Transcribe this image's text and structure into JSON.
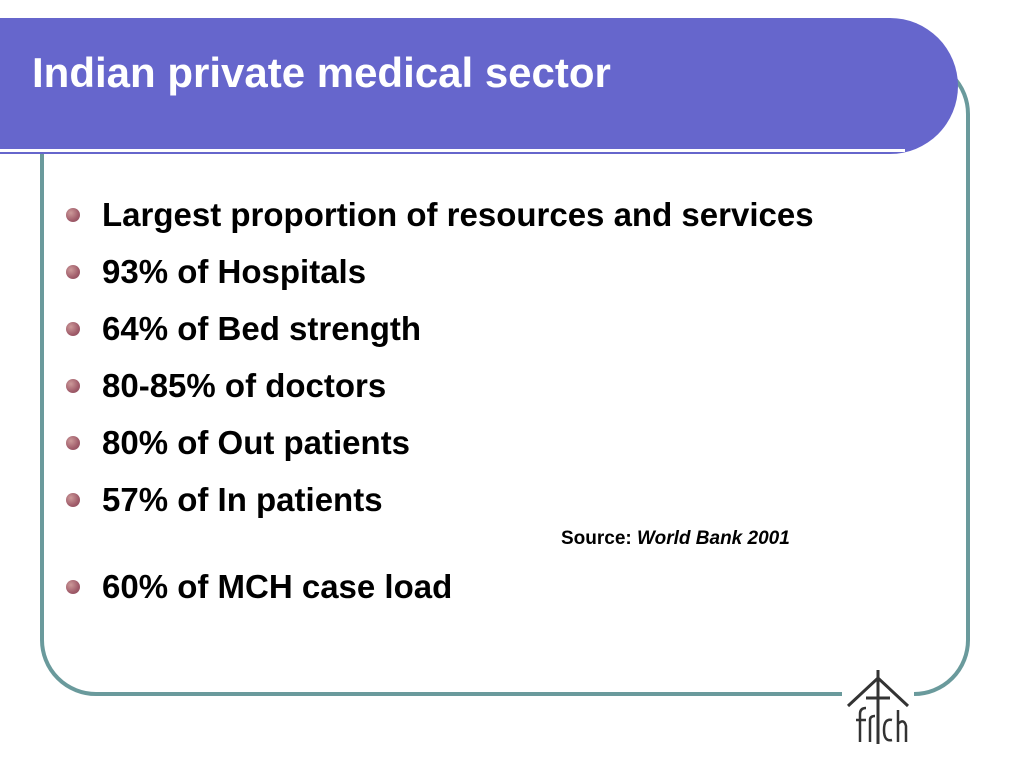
{
  "title": "Indian private medical sector",
  "bullets": [
    "Largest proportion of resources and services",
    "93% of Hospitals",
    "64% of Bed strength",
    "80-85% of doctors",
    "80% of Out patients",
    "57% of In patients"
  ],
  "source": {
    "label": "Source:",
    "value": "World Bank 2001"
  },
  "last_bullet": "60% of MCH case load",
  "logo": {
    "icon": "house-cross-logo-icon",
    "text": "frch"
  },
  "colors": {
    "title_bar": "#6666cc",
    "frame_border": "#6a9a9c",
    "bullet": "#a05c6a"
  }
}
